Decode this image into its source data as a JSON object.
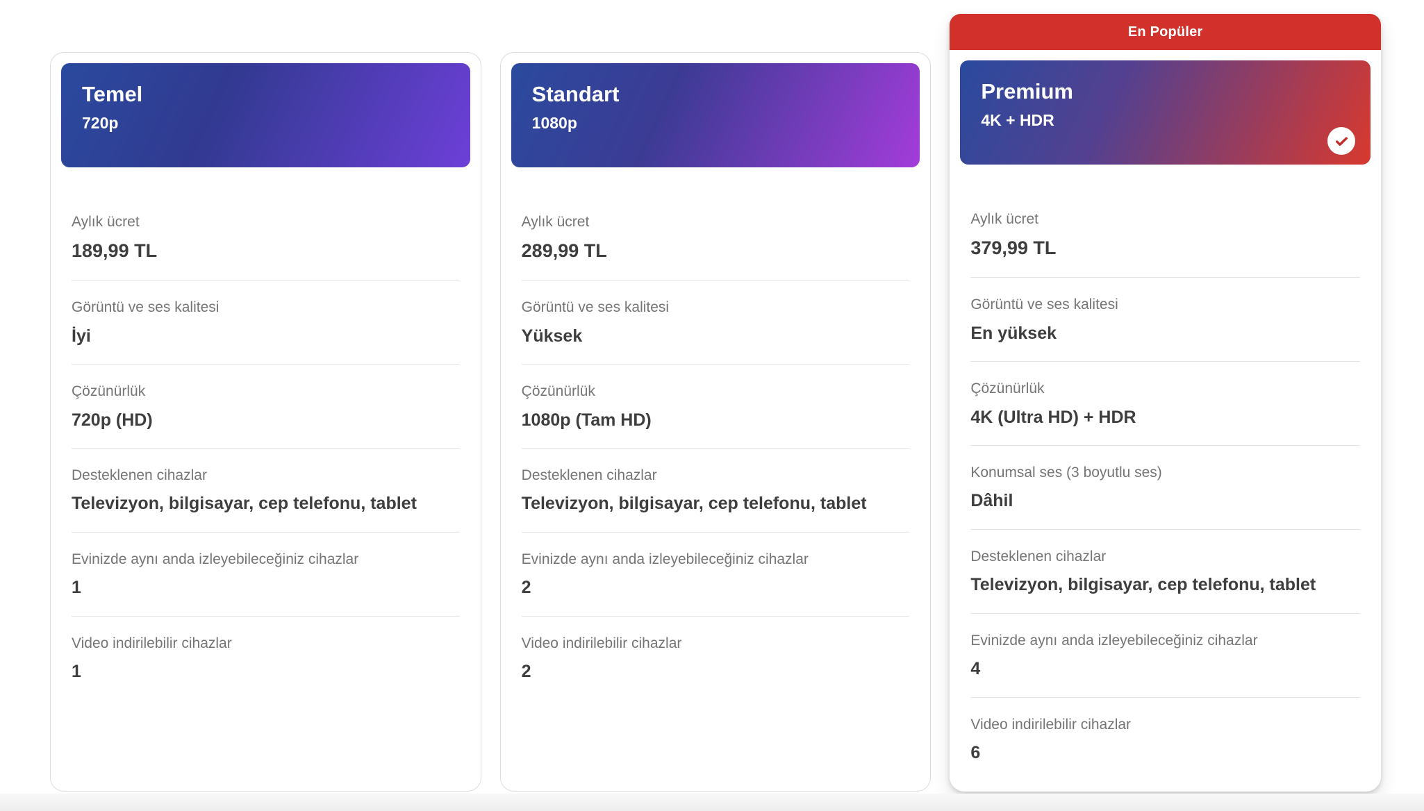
{
  "colors": {
    "badge_red": "#d2302a",
    "check_red": "#bf2d26",
    "label_gray": "#757575",
    "value_dark": "#3e3e3e",
    "divider": "#e3e3e3"
  },
  "plans": [
    {
      "id": "temel",
      "title": "Temel",
      "subtitle": "720p",
      "selected": false,
      "badge": null,
      "header_gradient": [
        "#2a4a9e",
        "#313a90",
        "#6d3fd8"
      ],
      "rows": [
        {
          "label": "Aylık ücret",
          "value": "189,99 TL"
        },
        {
          "label": "Görüntü ve ses kalitesi",
          "value": "İyi"
        },
        {
          "label": "Çözünürlük",
          "value": "720p (HD)"
        },
        {
          "label": "Desteklenen cihazlar",
          "value": "Televizyon, bilgisayar, cep telefonu, tablet"
        },
        {
          "label": "Evinizde aynı anda izleyebileceğiniz cihazlar",
          "value": "1"
        },
        {
          "label": "Video indirilebilir cihazlar",
          "value": "1"
        }
      ]
    },
    {
      "id": "standart",
      "title": "Standart",
      "subtitle": "1080p",
      "selected": false,
      "badge": null,
      "header_gradient": [
        "#2a4a9e",
        "#3c3b94",
        "#a33cda"
      ],
      "rows": [
        {
          "label": "Aylık ücret",
          "value": "289,99 TL"
        },
        {
          "label": "Görüntü ve ses kalitesi",
          "value": "Yüksek"
        },
        {
          "label": "Çözünürlük",
          "value": "1080p (Tam HD)"
        },
        {
          "label": "Desteklenen cihazlar",
          "value": "Televizyon, bilgisayar, cep telefonu, tablet"
        },
        {
          "label": "Evinizde aynı anda izleyebileceğiniz cihazlar",
          "value": "2"
        },
        {
          "label": "Video indirilebilir cihazlar",
          "value": "2"
        }
      ]
    },
    {
      "id": "premium",
      "title": "Premium",
      "subtitle": "4K + HDR",
      "selected": true,
      "badge": "En Popüler",
      "header_gradient": [
        "#2a4a9e",
        "#55408f",
        "#d8392e"
      ],
      "rows": [
        {
          "label": "Aylık ücret",
          "value": "379,99 TL"
        },
        {
          "label": "Görüntü ve ses kalitesi",
          "value": "En yüksek"
        },
        {
          "label": "Çözünürlük",
          "value": "4K (Ultra HD) + HDR"
        },
        {
          "label": "Konumsal ses (3 boyutlu ses)",
          "value": "Dâhil"
        },
        {
          "label": "Desteklenen cihazlar",
          "value": "Televizyon, bilgisayar, cep telefonu, tablet"
        },
        {
          "label": "Evinizde aynı anda izleyebileceğiniz cihazlar",
          "value": "4"
        },
        {
          "label": "Video indirilebilir cihazlar",
          "value": "6"
        }
      ]
    }
  ]
}
